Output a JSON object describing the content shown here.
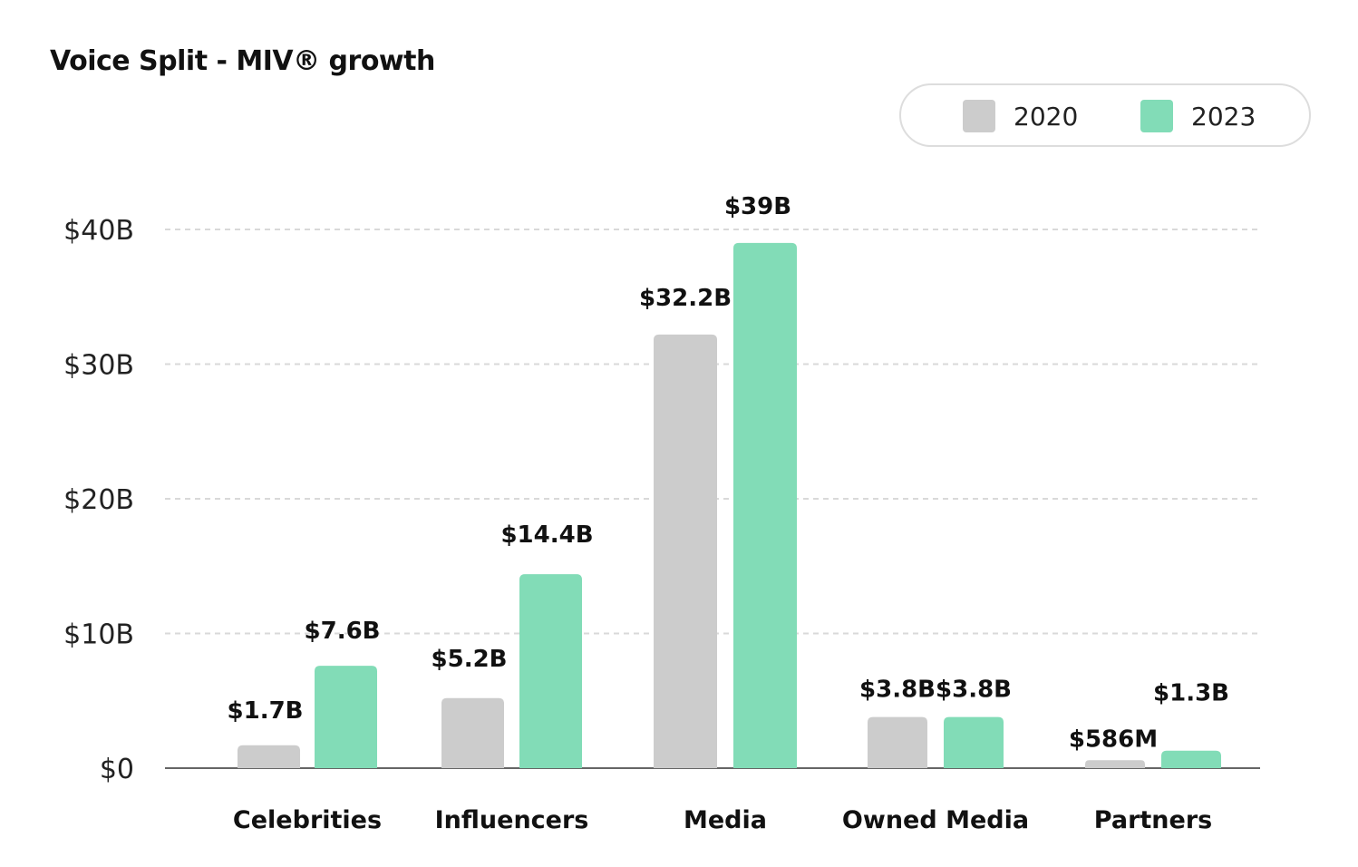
{
  "chart_data": {
    "type": "bar",
    "title": "Voice Split - MIV® growth",
    "xlabel": "",
    "ylabel": "",
    "categories": [
      "Celebrities",
      "Influencers",
      "Media",
      "Owned Media",
      "Partners"
    ],
    "series": [
      {
        "name": "2020",
        "color": "#cccccc",
        "values": [
          1.7,
          5.2,
          32.2,
          3.8,
          0.586
        ],
        "labels": [
          "$1.7B",
          "$5.2B",
          "$32.2B",
          "$3.8B",
          "$586M"
        ]
      },
      {
        "name": "2023",
        "color": "#82dcb7",
        "values": [
          7.6,
          14.4,
          39,
          3.8,
          1.3
        ],
        "labels": [
          "$7.6B",
          "$14.4B",
          "$39B",
          "$3.8B",
          "$1.3B"
        ]
      }
    ],
    "ylim": [
      0,
      40
    ],
    "yticks": [
      0,
      10,
      20,
      30,
      40
    ],
    "ytick_labels": [
      "$0",
      "$10B",
      "$20B",
      "$30B",
      "$40B"
    ],
    "grid": true,
    "legend_position": "top-right"
  }
}
